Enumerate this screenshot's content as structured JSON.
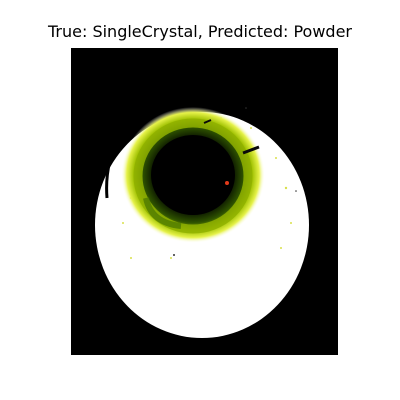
{
  "figure": {
    "title": "True: SingleCrystal, Predicted: Powder"
  },
  "image": {
    "background_color": "#000000",
    "ring_color": "#ffffff",
    "halo_color": "#bcd600",
    "center_color": "#000000"
  }
}
